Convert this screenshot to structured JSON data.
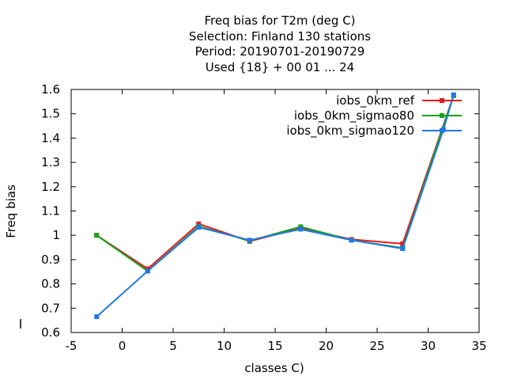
{
  "chart_data": {
    "type": "line",
    "title_lines": [
      "Freq bias  for T2m (deg C)",
      "Selection: Finland    130 stations",
      "Period: 20190701-20190729",
      "Used {18} + 00 01 ... 24"
    ],
    "xlabel": "classes C)",
    "ylabel": "Freq bias",
    "xlim": [
      -5,
      35
    ],
    "ylim": [
      0.6,
      1.6
    ],
    "xticks": [
      -5,
      0,
      5,
      10,
      15,
      20,
      25,
      30,
      35
    ],
    "yticks": [
      0.6,
      0.7,
      0.8,
      0.9,
      1.0,
      1.1,
      1.2,
      1.3,
      1.4,
      1.5,
      1.6
    ],
    "xtick_labels": [
      "-5",
      "0",
      "5",
      "10",
      "15",
      "20",
      "25",
      "30",
      "35"
    ],
    "ytick_labels": [
      "0.6",
      "0.7",
      "0.8",
      "0.9",
      "1",
      "1.1",
      "1.2",
      "1.3",
      "1.4",
      "1.5",
      "1.6"
    ],
    "grid": false,
    "legend_position": "top-right",
    "x": [
      -2.5,
      2.5,
      7.5,
      12.5,
      17.5,
      22.5,
      27.5,
      32.5
    ],
    "series": [
      {
        "name": "iobs_0km_ref",
        "color": "#e41a1c",
        "values": [
          1.0,
          0.862,
          1.047,
          0.975,
          1.03,
          0.983,
          0.965,
          1.575
        ]
      },
      {
        "name": "iobs_0km_sigmao80",
        "color": "#1aa01a",
        "values": [
          1.0,
          0.853,
          1.037,
          0.977,
          1.035,
          0.98,
          0.948,
          1.575
        ]
      },
      {
        "name": "iobs_0km_sigmao120",
        "color": "#1f78e6",
        "values": [
          0.665,
          0.853,
          1.033,
          0.98,
          1.025,
          0.98,
          0.945,
          1.578
        ]
      }
    ],
    "extra_points": [
      {
        "series": "iobs_0km_sigmao120",
        "x": 31.5,
        "y": 1.435
      }
    ]
  }
}
